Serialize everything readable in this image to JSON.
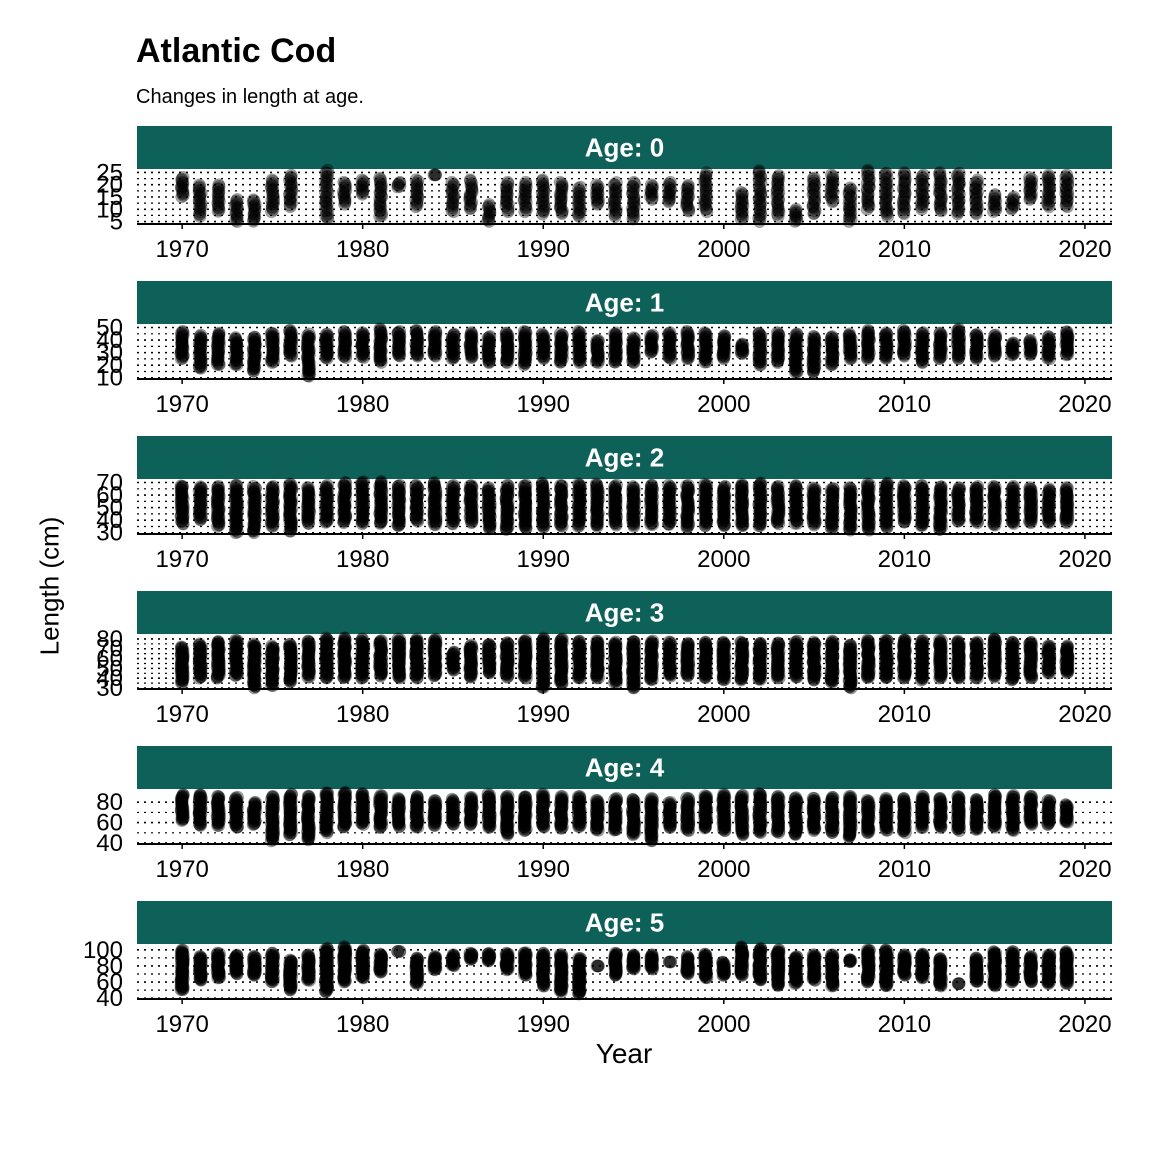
{
  "chart_data": {
    "type": "scatter",
    "title": "Atlantic Cod",
    "subtitle": "Changes in length at age.",
    "xlabel": "Year",
    "ylabel": "Length (cm)",
    "xlim": [
      1967.5,
      2021.5
    ],
    "x_ticks": [
      1970,
      1980,
      1990,
      2000,
      2010,
      2020
    ],
    "grid": "dotted horizontal",
    "point_color": "#000000",
    "point_alpha": 0.35,
    "strip_color": "#0e6159",
    "panels": [
      {
        "strip_label": "Age: 0",
        "ylim": [
          4,
          26
        ],
        "y_ticks": [
          5,
          10,
          15,
          20,
          25
        ],
        "years": [
          1970,
          1971,
          1972,
          1973,
          1974,
          1975,
          1976,
          1977,
          1978,
          1979,
          1980,
          1981,
          1982,
          1983,
          1984,
          1985,
          1986,
          1987,
          1988,
          1989,
          1990,
          1991,
          1992,
          1993,
          1994,
          1995,
          1996,
          1997,
          1998,
          1999,
          2000,
          2001,
          2002,
          2003,
          2004,
          2005,
          2006,
          2007,
          2008,
          2009,
          2010,
          2011,
          2012,
          2013,
          2014,
          2015,
          2016,
          2017,
          2018,
          2019
        ],
        "min": [
          15,
          7,
          9,
          5,
          5,
          9,
          11,
          null,
          6,
          12,
          16,
          7,
          19,
          11,
          24,
          9,
          10,
          5,
          9,
          9,
          8,
          8,
          7,
          12,
          7,
          6,
          14,
          13,
          9,
          9,
          null,
          6,
          5,
          7,
          5,
          8,
          13,
          5,
          10,
          7,
          8,
          10,
          9,
          8,
          8,
          9,
          10,
          14,
          11,
          11
        ],
        "max": [
          23,
          20,
          20,
          14,
          14,
          22,
          24,
          null,
          26,
          21,
          22,
          23,
          21,
          22,
          24,
          21,
          22,
          12,
          21,
          21,
          22,
          21,
          19,
          20,
          21,
          21,
          20,
          21,
          20,
          25,
          null,
          17,
          26,
          24,
          10,
          23,
          24,
          19,
          26,
          25,
          25,
          24,
          25,
          25,
          22,
          16,
          15,
          23,
          24,
          24
        ],
        "missing_years": [
          1977,
          2000
        ]
      },
      {
        "strip_label": "Age: 1",
        "ylim": [
          9,
          52
        ],
        "y_ticks": [
          10,
          20,
          30,
          40,
          50
        ],
        "years": [
          1970,
          1971,
          1972,
          1973,
          1974,
          1975,
          1976,
          1977,
          1978,
          1979,
          1980,
          1981,
          1982,
          1983,
          1984,
          1985,
          1986,
          1987,
          1988,
          1989,
          1990,
          1991,
          1992,
          1993,
          1994,
          1995,
          1996,
          1997,
          1998,
          1999,
          2000,
          2001,
          2002,
          2003,
          2004,
          2005,
          2006,
          2007,
          2008,
          2009,
          2010,
          2011,
          2012,
          2013,
          2014,
          2015,
          2016,
          2017,
          2018,
          2019
        ],
        "min": [
          25,
          17,
          20,
          20,
          15,
          22,
          27,
          11,
          25,
          26,
          26,
          22,
          27,
          27,
          27,
          25,
          26,
          22,
          22,
          20,
          25,
          22,
          22,
          22,
          22,
          22,
          30,
          25,
          25,
          22,
          25,
          29,
          20,
          22,
          14,
          14,
          20,
          25,
          25,
          25,
          27,
          22,
          25,
          25,
          25,
          27,
          28,
          28,
          25,
          28
        ],
        "max": [
          47,
          44,
          46,
          42,
          43,
          46,
          48,
          45,
          45,
          47,
          46,
          49,
          47,
          48,
          47,
          45,
          46,
          43,
          46,
          47,
          45,
          45,
          47,
          40,
          46,
          42,
          44,
          46,
          47,
          46,
          44,
          37,
          46,
          46,
          45,
          43,
          43,
          45,
          48,
          46,
          48,
          46,
          46,
          49,
          45,
          44,
          38,
          40,
          43,
          47
        ],
        "missing_years": []
      },
      {
        "strip_label": "Age: 2",
        "ylim": [
          29,
          72
        ],
        "y_ticks": [
          30,
          40,
          50,
          60,
          70
        ],
        "years": [
          1970,
          1971,
          1972,
          1973,
          1974,
          1975,
          1976,
          1977,
          1978,
          1979,
          1980,
          1981,
          1982,
          1983,
          1984,
          1985,
          1986,
          1987,
          1988,
          1989,
          1990,
          1991,
          1992,
          1993,
          1994,
          1995,
          1996,
          1997,
          1998,
          1999,
          2000,
          2001,
          2002,
          2003,
          2004,
          2005,
          2006,
          2007,
          2008,
          2009,
          2010,
          2011,
          2012,
          2013,
          2014,
          2015,
          2016,
          2017,
          2018,
          2019
        ],
        "min": [
          37,
          40,
          35,
          30,
          30,
          35,
          31,
          37,
          38,
          38,
          37,
          37,
          35,
          39,
          36,
          37,
          38,
          33,
          32,
          33,
          34,
          35,
          35,
          35,
          36,
          35,
          36,
          36,
          34,
          35,
          35,
          35,
          35,
          37,
          37,
          36,
          33,
          32,
          32,
          34,
          38,
          35,
          32,
          39,
          38,
          36,
          37,
          38,
          38,
          38
        ],
        "max": [
          68,
          67,
          67,
          68,
          67,
          67,
          69,
          66,
          68,
          70,
          71,
          71,
          68,
          68,
          70,
          68,
          68,
          66,
          68,
          68,
          70,
          68,
          69,
          69,
          68,
          67,
          68,
          68,
          68,
          69,
          67,
          69,
          70,
          67,
          68,
          66,
          66,
          66,
          69,
          70,
          68,
          68,
          67,
          66,
          67,
          67,
          67,
          66,
          65,
          66
        ],
        "missing_years": []
      },
      {
        "strip_label": "Age: 3",
        "ylim": [
          29,
          84
        ],
        "y_ticks": [
          30,
          40,
          50,
          60,
          70,
          80
        ],
        "years": [
          1970,
          1971,
          1972,
          1973,
          1974,
          1975,
          1976,
          1977,
          1978,
          1979,
          1980,
          1981,
          1982,
          1983,
          1984,
          1985,
          1986,
          1987,
          1988,
          1989,
          1990,
          1991,
          1992,
          1993,
          1994,
          1995,
          1996,
          1997,
          1998,
          1999,
          2000,
          2001,
          2002,
          2003,
          2004,
          2005,
          2006,
          2007,
          2008,
          2009,
          2010,
          2011,
          2012,
          2013,
          2014,
          2015,
          2016,
          2017,
          2018,
          2019
        ],
        "min": [
          35,
          40,
          40,
          42,
          30,
          32,
          36,
          41,
          40,
          40,
          40,
          42,
          40,
          40,
          42,
          48,
          41,
          45,
          41,
          40,
          30,
          34,
          40,
          40,
          35,
          30,
          38,
          42,
          42,
          40,
          38,
          38,
          38,
          40,
          41,
          38,
          35,
          30,
          40,
          40,
          40,
          38,
          40,
          40,
          40,
          41,
          38,
          40,
          45,
          45
        ],
        "max": [
          72,
          75,
          78,
          79,
          75,
          73,
          75,
          78,
          81,
          81,
          80,
          79,
          80,
          80,
          80,
          67,
          74,
          75,
          77,
          79,
          81,
          80,
          78,
          78,
          77,
          78,
          78,
          77,
          76,
          77,
          77,
          77,
          76,
          76,
          78,
          77,
          78,
          74,
          79,
          79,
          80,
          79,
          79,
          78,
          77,
          81,
          77,
          77,
          73,
          73
        ],
        "missing_years": []
      },
      {
        "strip_label": "Age: 4",
        "ylim": [
          39,
          92
        ],
        "y_ticks": [
          40,
          60,
          80
        ],
        "years": [
          1970,
          1971,
          1972,
          1973,
          1974,
          1975,
          1976,
          1977,
          1978,
          1979,
          1980,
          1981,
          1982,
          1983,
          1984,
          1985,
          1986,
          1987,
          1988,
          1989,
          1990,
          1991,
          1992,
          1993,
          1994,
          1995,
          1996,
          1997,
          1998,
          1999,
          2000,
          2001,
          2002,
          2003,
          2004,
          2005,
          2006,
          2007,
          2008,
          2009,
          2010,
          2011,
          2012,
          2013,
          2014,
          2015,
          2016,
          2017,
          2018,
          2019
        ],
        "min": [
          62,
          57,
          57,
          55,
          58,
          42,
          48,
          43,
          50,
          55,
          58,
          55,
          56,
          55,
          57,
          58,
          58,
          55,
          48,
          52,
          55,
          54,
          56,
          52,
          52,
          48,
          42,
          55,
          52,
          54,
          52,
          48,
          50,
          50,
          48,
          52,
          50,
          45,
          50,
          52,
          50,
          55,
          55,
          52,
          53,
          55,
          52,
          58,
          58,
          60
        ],
        "max": [
          88,
          88,
          86,
          85,
          80,
          86,
          88,
          86,
          90,
          90,
          89,
          87,
          84,
          86,
          82,
          83,
          85,
          88,
          86,
          86,
          88,
          86,
          86,
          82,
          84,
          83,
          84,
          80,
          84,
          87,
          88,
          87,
          89,
          86,
          85,
          84,
          85,
          86,
          82,
          84,
          84,
          86,
          84,
          86,
          83,
          88,
          87,
          86,
          82,
          78
        ],
        "missing_years": []
      },
      {
        "strip_label": "Age: 5",
        "ylim": [
          39,
          106
        ],
        "y_ticks": [
          40,
          60,
          80,
          100
        ],
        "years": [
          1970,
          1971,
          1972,
          1973,
          1974,
          1975,
          1976,
          1977,
          1978,
          1979,
          1980,
          1981,
          1982,
          1983,
          1984,
          1985,
          1986,
          1987,
          1988,
          1989,
          1990,
          1991,
          1992,
          1993,
          1994,
          1995,
          1996,
          1997,
          1998,
          1999,
          2000,
          2001,
          2002,
          2003,
          2004,
          2005,
          2006,
          2007,
          2008,
          2009,
          2010,
          2011,
          2012,
          2013,
          2014,
          2015,
          2016,
          2017,
          2018,
          2019
        ],
        "min": [
          50,
          62,
          65,
          70,
          68,
          60,
          50,
          62,
          48,
          60,
          65,
          72,
          98,
          58,
          75,
          80,
          88,
          86,
          75,
          68,
          55,
          48,
          45,
          80,
          68,
          76,
          76,
          85,
          70,
          65,
          68,
          68,
          62,
          55,
          58,
          62,
          55,
          85,
          60,
          55,
          68,
          65,
          55,
          58,
          60,
          55,
          60,
          60,
          58,
          58
        ],
        "max": [
          100,
          92,
          96,
          94,
          92,
          96,
          88,
          94,
          102,
          104,
          100,
          95,
          98,
          90,
          92,
          94,
          96,
          96,
          96,
          97,
          96,
          94,
          90,
          80,
          96,
          94,
          94,
          85,
          92,
          95,
          85,
          104,
          102,
          100,
          92,
          94,
          94,
          88,
          100,
          100,
          94,
          95,
          90,
          58,
          90,
          98,
          98,
          92,
          94,
          98
        ],
        "missing_years": []
      }
    ]
  }
}
